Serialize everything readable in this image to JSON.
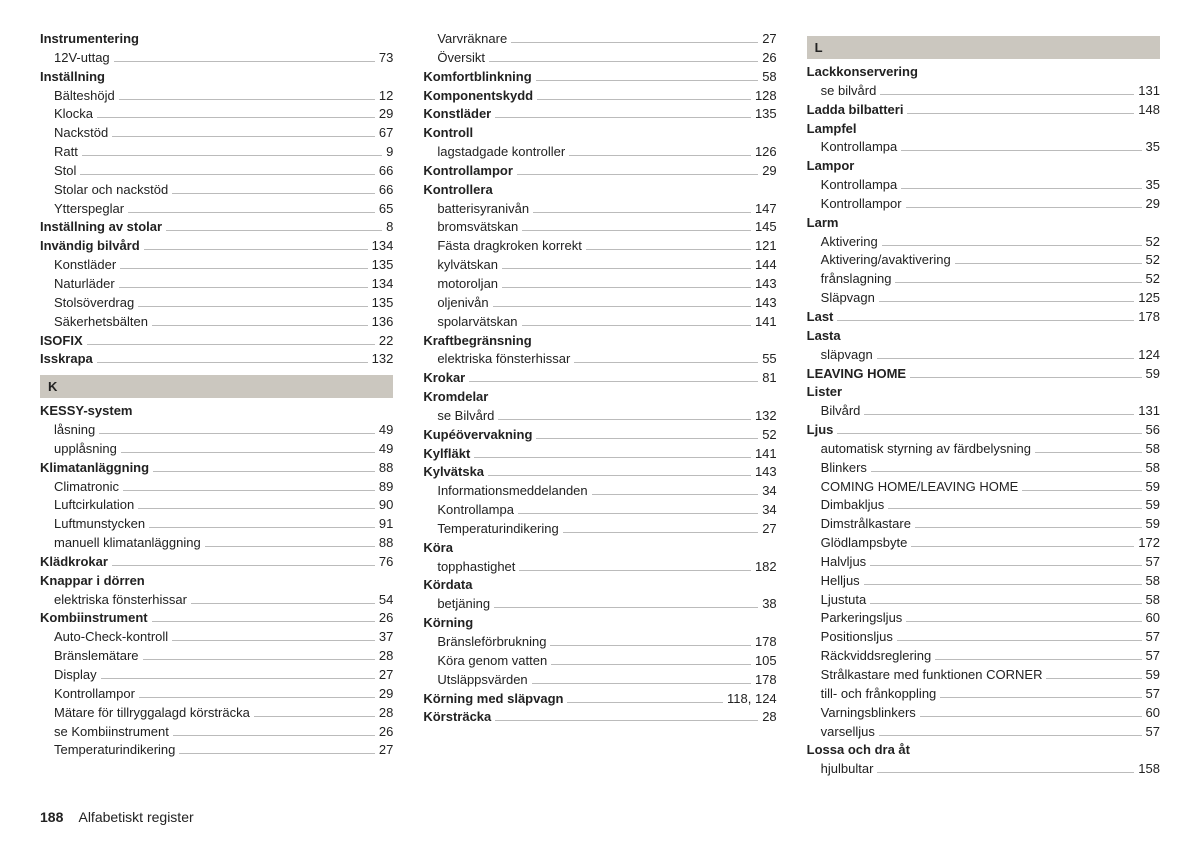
{
  "footer": {
    "page_number": "188",
    "title": "Alfabetiskt register"
  },
  "columns": [
    {
      "items": [
        {
          "type": "bold",
          "label": "Instrumentering"
        },
        {
          "type": "sub",
          "label": "12V-uttag",
          "page": "73"
        },
        {
          "type": "bold",
          "label": "Inställning"
        },
        {
          "type": "sub",
          "label": "Bälteshöjd",
          "page": "12"
        },
        {
          "type": "sub",
          "label": "Klocka",
          "page": "29"
        },
        {
          "type": "sub",
          "label": "Nackstöd",
          "page": "67"
        },
        {
          "type": "sub",
          "label": "Ratt",
          "page": "9"
        },
        {
          "type": "sub",
          "label": "Stol",
          "page": "66"
        },
        {
          "type": "sub",
          "label": "Stolar och nackstöd",
          "page": "66"
        },
        {
          "type": "sub",
          "label": "Ytterspeglar",
          "page": "65"
        },
        {
          "type": "bold",
          "label": "Inställning av stolar",
          "page": "8"
        },
        {
          "type": "bold",
          "label": "Invändig bilvård",
          "page": "134"
        },
        {
          "type": "sub",
          "label": "Konstläder",
          "page": "135"
        },
        {
          "type": "sub",
          "label": "Naturläder",
          "page": "134"
        },
        {
          "type": "sub",
          "label": "Stolsöverdrag",
          "page": "135"
        },
        {
          "type": "sub",
          "label": "Säkerhetsbälten",
          "page": "136"
        },
        {
          "type": "bold",
          "label": "ISOFIX",
          "page": "22"
        },
        {
          "type": "bold",
          "label": "Isskrapa",
          "page": "132"
        },
        {
          "type": "letter",
          "label": "K"
        },
        {
          "type": "bold",
          "label": "KESSY-system"
        },
        {
          "type": "sub",
          "label": "låsning",
          "page": "49"
        },
        {
          "type": "sub",
          "label": "upplåsning",
          "page": "49"
        },
        {
          "type": "bold",
          "label": "Klimatanläggning",
          "page": "88"
        },
        {
          "type": "sub",
          "label": "Climatronic",
          "page": "89"
        },
        {
          "type": "sub",
          "label": "Luftcirkulation",
          "page": "90"
        },
        {
          "type": "sub",
          "label": "Luftmunstycken",
          "page": "91"
        },
        {
          "type": "sub",
          "label": "manuell klimatanläggning",
          "page": "88"
        },
        {
          "type": "bold",
          "label": "Klädkrokar",
          "page": "76"
        },
        {
          "type": "bold",
          "label": "Knappar i dörren"
        },
        {
          "type": "sub",
          "label": "elektriska fönsterhissar",
          "page": "54"
        },
        {
          "type": "bold",
          "label": "Kombiinstrument",
          "page": "26"
        },
        {
          "type": "sub",
          "label": "Auto-Check-kontroll",
          "page": "37"
        },
        {
          "type": "sub",
          "label": "Bränslemätare",
          "page": "28"
        },
        {
          "type": "sub",
          "label": "Display",
          "page": "27"
        },
        {
          "type": "sub",
          "label": "Kontrollampor",
          "page": "29"
        },
        {
          "type": "sub",
          "label": "Mätare för tillryggalagd körsträcka",
          "page": "28"
        },
        {
          "type": "sub",
          "label": "se Kombiinstrument",
          "page": "26"
        },
        {
          "type": "sub",
          "label": "Temperaturindikering",
          "page": "27"
        }
      ]
    },
    {
      "items": [
        {
          "type": "sub",
          "label": "Varvräknare",
          "page": "27"
        },
        {
          "type": "sub",
          "label": "Översikt",
          "page": "26"
        },
        {
          "type": "bold",
          "label": "Komfortblinkning",
          "page": "58"
        },
        {
          "type": "bold",
          "label": "Komponentskydd",
          "page": "128"
        },
        {
          "type": "bold",
          "label": "Konstläder",
          "page": "135"
        },
        {
          "type": "bold",
          "label": "Kontroll"
        },
        {
          "type": "sub",
          "label": "lagstadgade kontroller",
          "page": "126"
        },
        {
          "type": "bold",
          "label": "Kontrollampor",
          "page": "29"
        },
        {
          "type": "bold",
          "label": "Kontrollera"
        },
        {
          "type": "sub",
          "label": "batterisyranivån",
          "page": "147"
        },
        {
          "type": "sub",
          "label": "bromsvätskan",
          "page": "145"
        },
        {
          "type": "sub",
          "label": "Fästa dragkroken korrekt",
          "page": "121"
        },
        {
          "type": "sub",
          "label": "kylvätskan",
          "page": "144"
        },
        {
          "type": "sub",
          "label": "motoroljan",
          "page": "143"
        },
        {
          "type": "sub",
          "label": "oljenivån",
          "page": "143"
        },
        {
          "type": "sub",
          "label": "spolarvätskan",
          "page": "141"
        },
        {
          "type": "bold",
          "label": "Kraftbegränsning"
        },
        {
          "type": "sub",
          "label": "elektriska fönsterhissar",
          "page": "55"
        },
        {
          "type": "bold",
          "label": "Krokar",
          "page": "81"
        },
        {
          "type": "bold",
          "label": "Kromdelar"
        },
        {
          "type": "sub",
          "label": "se Bilvård",
          "page": "132"
        },
        {
          "type": "bold",
          "label": "Kupéövervakning",
          "page": "52"
        },
        {
          "type": "bold",
          "label": "Kylfläkt",
          "page": "141"
        },
        {
          "type": "bold",
          "label": "Kylvätska",
          "page": "143"
        },
        {
          "type": "sub",
          "label": "Informationsmeddelanden",
          "page": "34"
        },
        {
          "type": "sub",
          "label": "Kontrollampa",
          "page": "34"
        },
        {
          "type": "sub",
          "label": "Temperaturindikering",
          "page": "27"
        },
        {
          "type": "bold",
          "label": "Köra"
        },
        {
          "type": "sub",
          "label": "topphastighet",
          "page": "182"
        },
        {
          "type": "bold",
          "label": "Kördata"
        },
        {
          "type": "sub",
          "label": "betjäning",
          "page": "38"
        },
        {
          "type": "bold",
          "label": "Körning"
        },
        {
          "type": "sub",
          "label": "Bränsleförbrukning",
          "page": "178"
        },
        {
          "type": "sub",
          "label": "Köra genom vatten",
          "page": "105"
        },
        {
          "type": "sub",
          "label": "Utsläppsvärden",
          "page": "178"
        },
        {
          "type": "bold",
          "label": "Körning med släpvagn",
          "page": "118, 124"
        },
        {
          "type": "bold",
          "label": "Körsträcka",
          "page": "28"
        }
      ]
    },
    {
      "items": [
        {
          "type": "letter",
          "label": "L"
        },
        {
          "type": "bold",
          "label": "Lackkonservering"
        },
        {
          "type": "sub",
          "label": "se bilvård",
          "page": "131"
        },
        {
          "type": "bold",
          "label": "Ladda bilbatteri",
          "page": "148"
        },
        {
          "type": "bold",
          "label": "Lampfel"
        },
        {
          "type": "sub",
          "label": "Kontrollampa",
          "page": "35"
        },
        {
          "type": "bold",
          "label": "Lampor"
        },
        {
          "type": "sub",
          "label": "Kontrollampa",
          "page": "35"
        },
        {
          "type": "sub",
          "label": "Kontrollampor",
          "page": "29"
        },
        {
          "type": "bold",
          "label": "Larm"
        },
        {
          "type": "sub",
          "label": "Aktivering",
          "page": "52"
        },
        {
          "type": "sub",
          "label": "Aktivering/avaktivering",
          "page": "52"
        },
        {
          "type": "sub",
          "label": "frånslagning",
          "page": "52"
        },
        {
          "type": "sub",
          "label": "Släpvagn",
          "page": "125"
        },
        {
          "type": "bold",
          "label": "Last",
          "page": "178"
        },
        {
          "type": "bold",
          "label": "Lasta"
        },
        {
          "type": "sub",
          "label": "släpvagn",
          "page": "124"
        },
        {
          "type": "bold",
          "label": "LEAVING HOME",
          "page": "59"
        },
        {
          "type": "bold",
          "label": "Lister"
        },
        {
          "type": "sub",
          "label": "Bilvård",
          "page": "131"
        },
        {
          "type": "bold",
          "label": "Ljus",
          "page": "56"
        },
        {
          "type": "sub",
          "label": "automatisk styrning av färdbelysning",
          "page": "58"
        },
        {
          "type": "sub",
          "label": "Blinkers",
          "page": "58"
        },
        {
          "type": "sub",
          "label": "COMING HOME/LEAVING HOME",
          "page": "59"
        },
        {
          "type": "sub",
          "label": "Dimbakljus",
          "page": "59"
        },
        {
          "type": "sub",
          "label": "Dimstrålkastare",
          "page": "59"
        },
        {
          "type": "sub",
          "label": "Glödlampsbyte",
          "page": "172"
        },
        {
          "type": "sub",
          "label": "Halvljus",
          "page": "57"
        },
        {
          "type": "sub",
          "label": "Helljus",
          "page": "58"
        },
        {
          "type": "sub",
          "label": "Ljustuta",
          "page": "58"
        },
        {
          "type": "sub",
          "label": "Parkeringsljus",
          "page": "60"
        },
        {
          "type": "sub",
          "label": "Positionsljus",
          "page": "57"
        },
        {
          "type": "sub",
          "label": "Räckviddsreglering",
          "page": "57"
        },
        {
          "type": "sub",
          "label": "Strålkastare med funktionen CORNER",
          "page": "59"
        },
        {
          "type": "sub",
          "label": "till- och frånkoppling",
          "page": "57"
        },
        {
          "type": "sub",
          "label": "Varningsblinkers",
          "page": "60"
        },
        {
          "type": "sub",
          "label": "varselljus",
          "page": "57"
        },
        {
          "type": "bold",
          "label": "Lossa och dra åt"
        },
        {
          "type": "sub",
          "label": "hjulbultar",
          "page": "158"
        }
      ]
    }
  ]
}
